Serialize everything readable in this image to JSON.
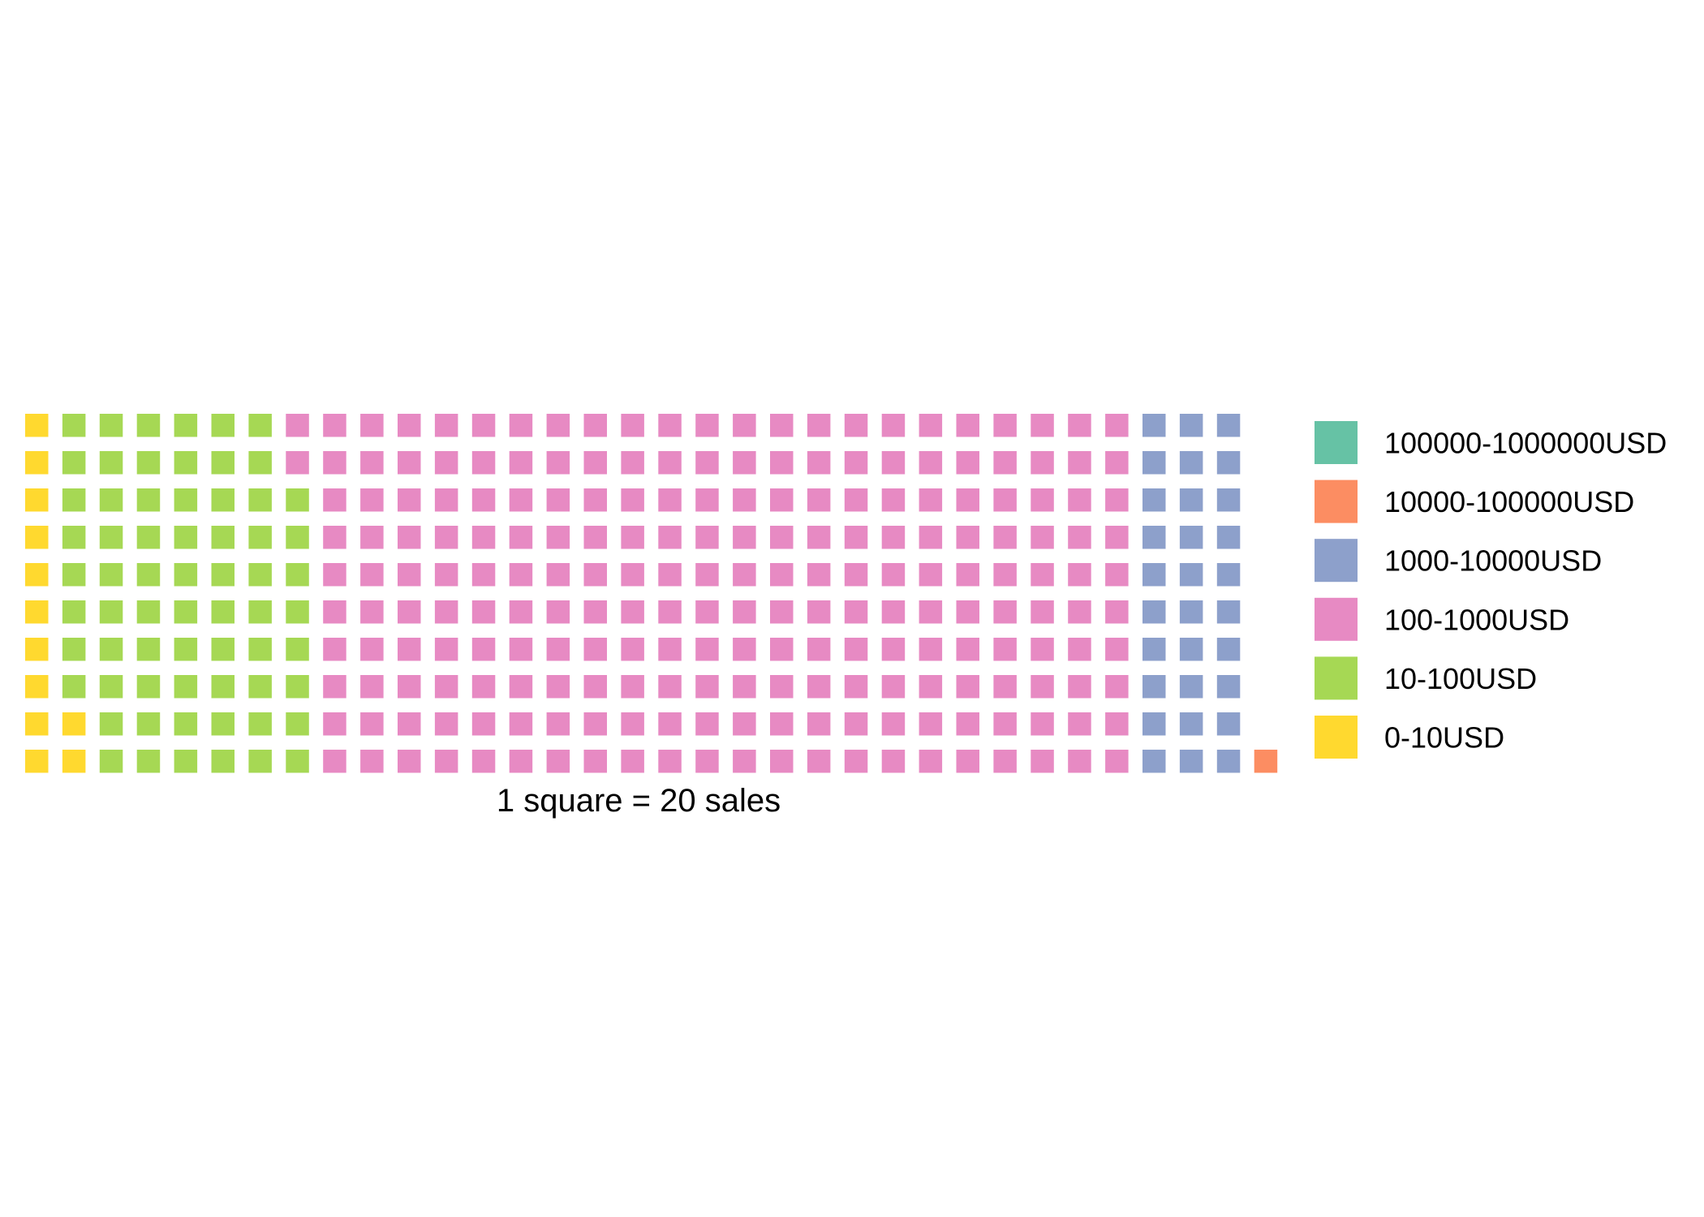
{
  "chart_data": {
    "type": "waffle",
    "caption": "1 square = 20 sales",
    "rows": 10,
    "fill_order": "column-major, bottom-to-top, left-to-right",
    "categories": [
      {
        "name": "0-10USD",
        "squares": 12,
        "color": "#FFD92F"
      },
      {
        "name": "10-100USD",
        "squares": 66,
        "color": "#A6D854"
      },
      {
        "name": "100-1000USD",
        "squares": 222,
        "color": "#E78AC3"
      },
      {
        "name": "1000-10000USD",
        "squares": 30,
        "color": "#8DA0CB"
      },
      {
        "name": "10000-100000USD",
        "squares": 1,
        "color": "#FC8D62"
      },
      {
        "name": "100000-1000000USD",
        "squares": 0,
        "color": "#66C2A5"
      }
    ],
    "legend": {
      "placement": "right",
      "order": [
        "100000-1000000USD",
        "10000-100000USD",
        "1000-10000USD",
        "100-1000USD",
        "10-100USD",
        "0-10USD"
      ]
    }
  }
}
